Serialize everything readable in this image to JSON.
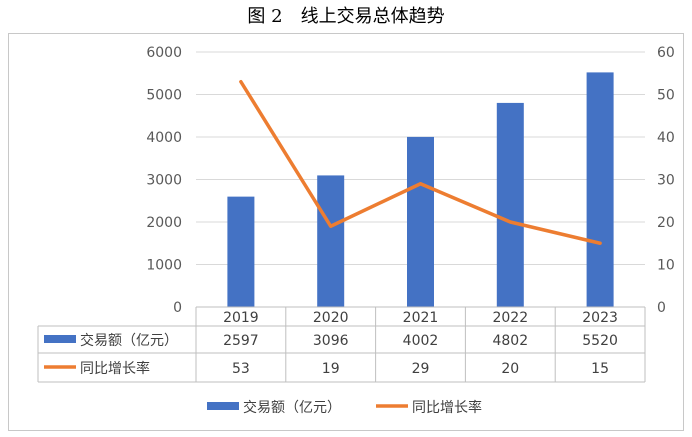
{
  "chart_data": {
    "type": "bar",
    "title": "图 2　线上交易总体趋势",
    "categories": [
      "2019",
      "2020",
      "2021",
      "2022",
      "2023"
    ],
    "series": [
      {
        "name": "交易额（亿元）",
        "type": "bar",
        "axis": "left",
        "color": "#4472C4",
        "values": [
          2597,
          3096,
          4002,
          4802,
          5520
        ]
      },
      {
        "name": "同比增长率",
        "type": "line",
        "axis": "right",
        "color": "#ED7D31",
        "values": [
          53,
          19,
          29,
          20,
          15
        ]
      }
    ],
    "y_left": {
      "min": 0,
      "max": 6000,
      "ticks": [
        0,
        1000,
        2000,
        3000,
        4000,
        5000,
        6000
      ]
    },
    "y_right": {
      "min": 0,
      "max": 60,
      "ticks": [
        0,
        10,
        20,
        30,
        40,
        50,
        60
      ]
    },
    "grid": true,
    "data_table": true,
    "legend_position": "bottom"
  }
}
